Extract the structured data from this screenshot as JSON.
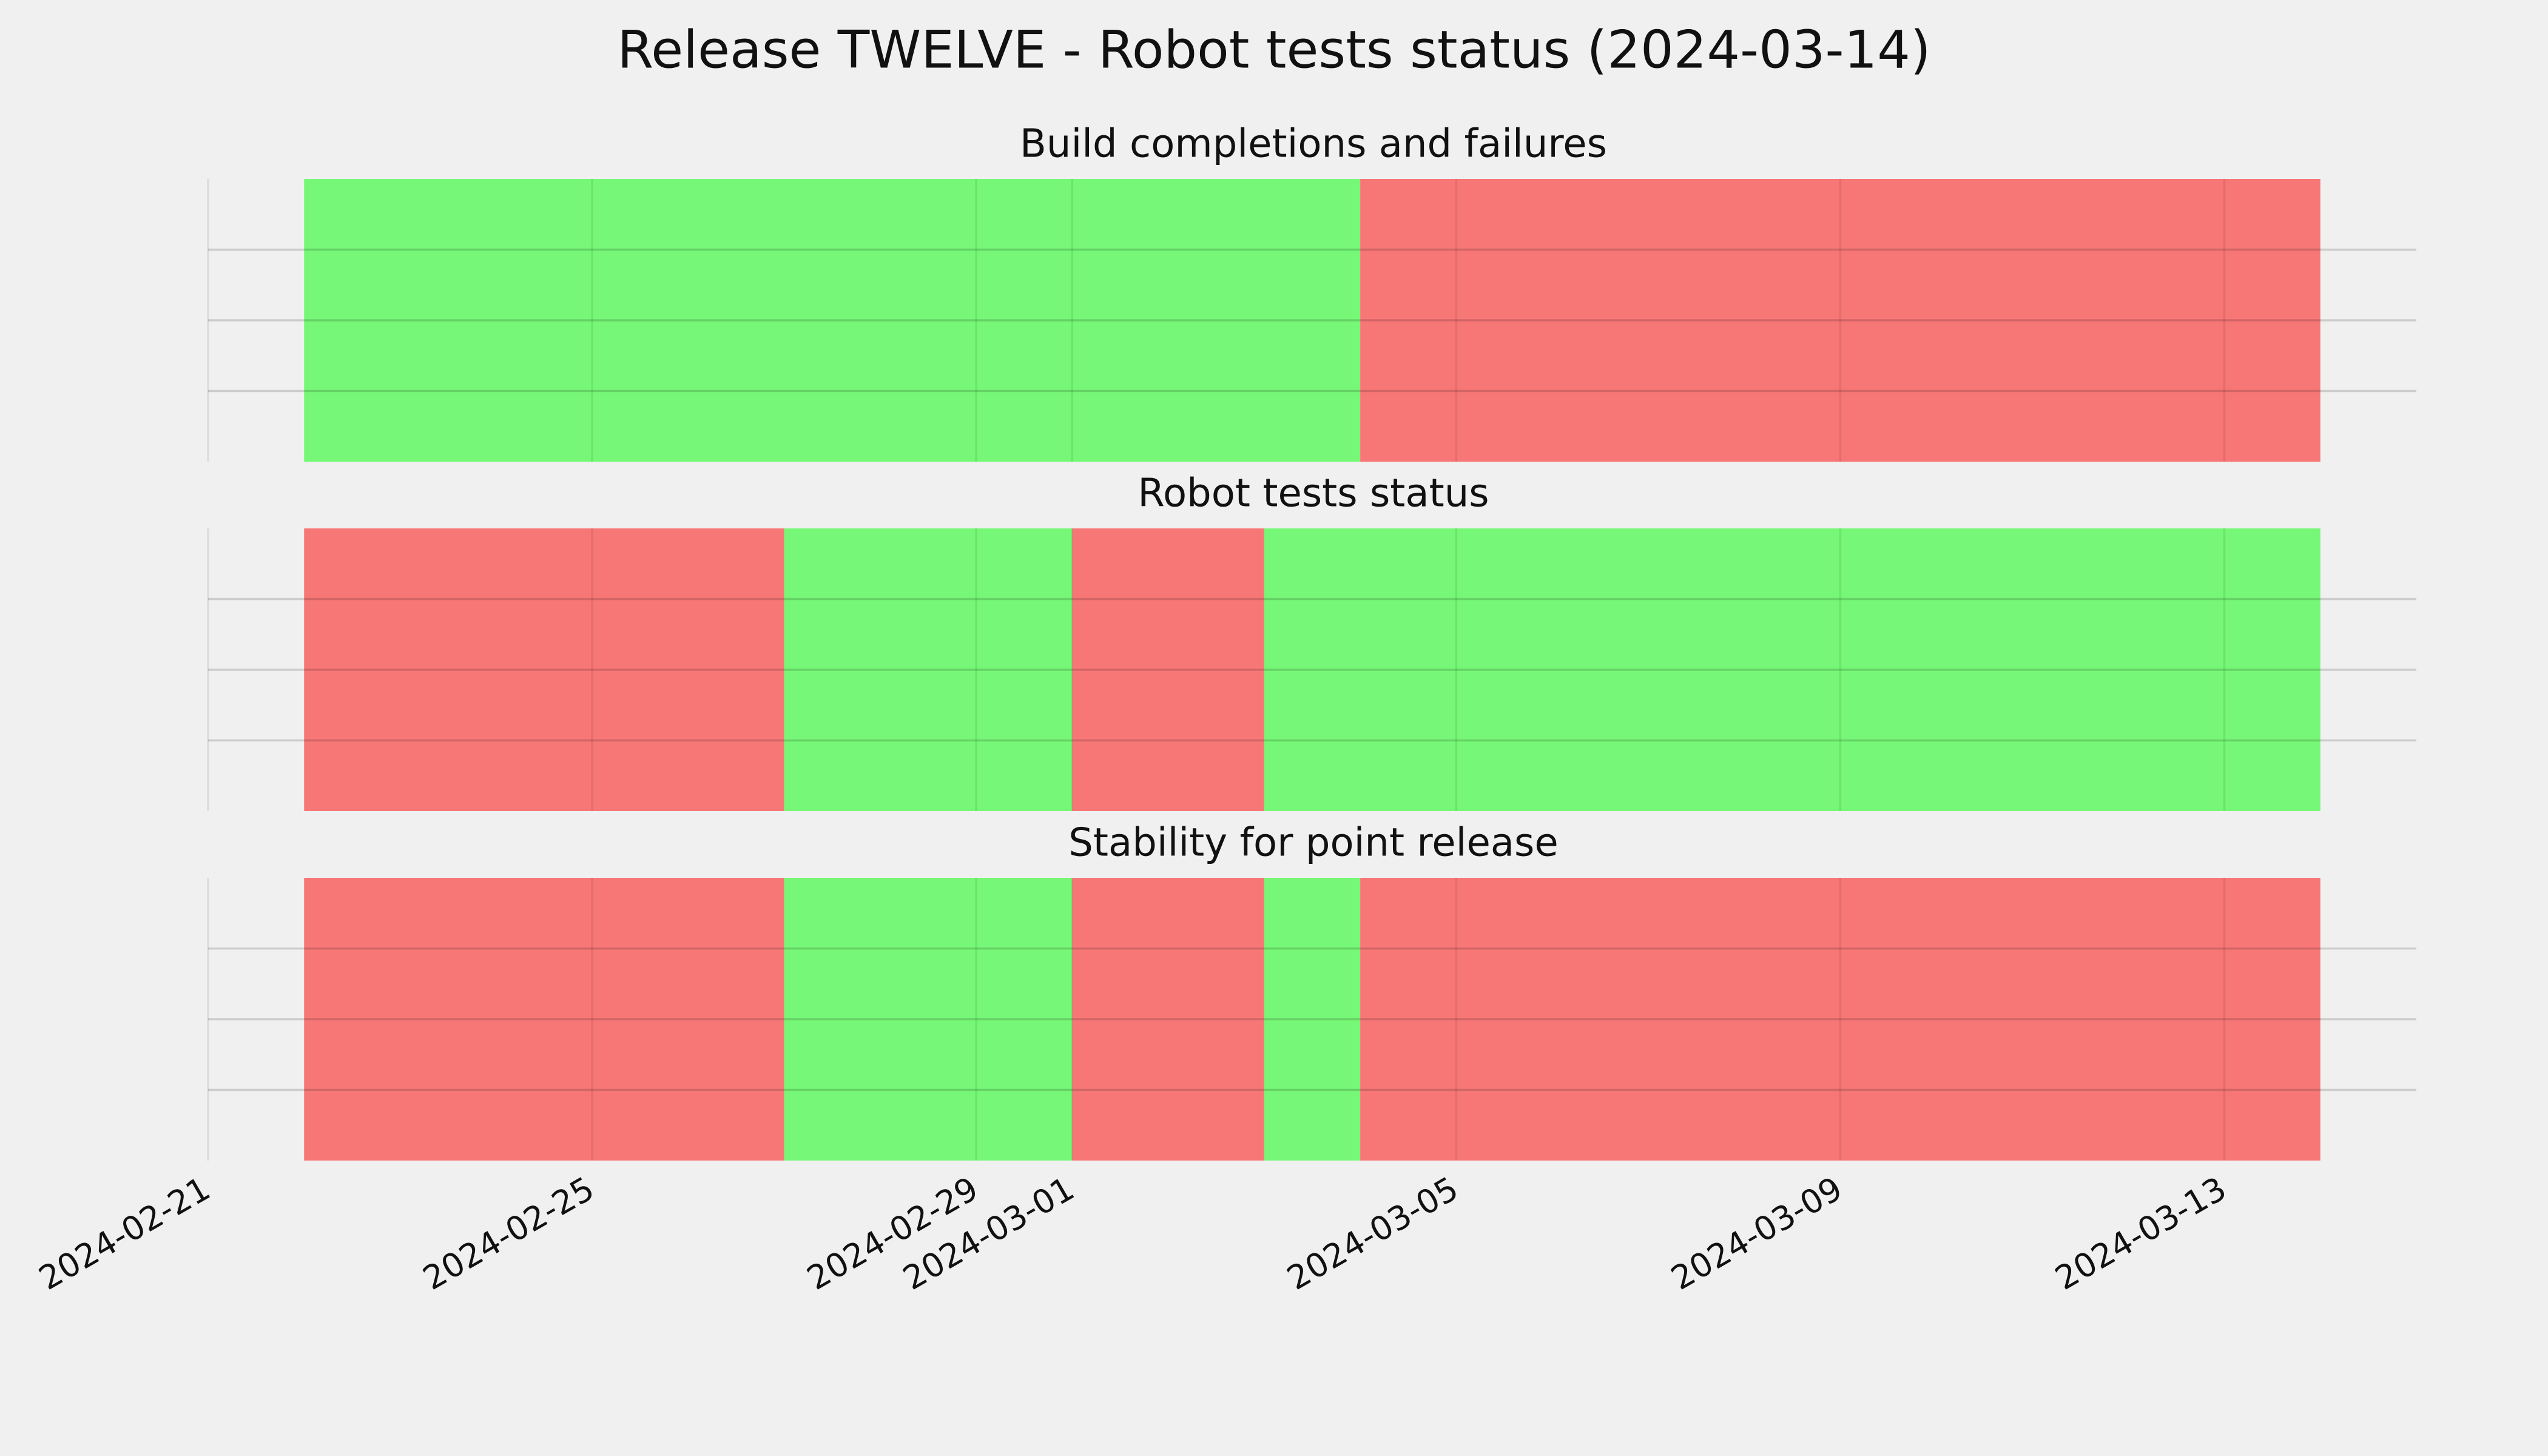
{
  "chart_data": {
    "type": "timeline",
    "title": "Release TWELVE - Robot tests status (2024-03-14)",
    "xlim": [
      "2024-02-21",
      "2024-03-15"
    ],
    "xticks": [
      "2024-02-21",
      "2024-02-25",
      "2024-02-29",
      "2024-03-01",
      "2024-03-05",
      "2024-03-09",
      "2024-03-13"
    ],
    "ylim": [
      0,
      1
    ],
    "yticks": [
      0.25,
      0.5,
      0.75
    ],
    "grid": true,
    "panels": [
      {
        "title": "Build completions and failures",
        "starts": [
          "2024-02-22",
          "2024-03-04"
        ],
        "ends": [
          "2024-03-04",
          "2024-03-14"
        ],
        "colors": [
          "#77f777",
          "#f77777"
        ]
      },
      {
        "title": "Robot tests status",
        "starts": [
          "2024-02-22",
          "2024-02-27",
          "2024-03-01",
          "2024-03-03"
        ],
        "ends": [
          "2024-02-27",
          "2024-03-01",
          "2024-03-03",
          "2024-03-14"
        ],
        "colors": [
          "#f77777",
          "#77f777",
          "#f77777",
          "#77f777"
        ]
      },
      {
        "title": "Stability for point release",
        "starts": [
          "2024-02-22",
          "2024-02-27",
          "2024-03-01",
          "2024-03-03",
          "2024-03-04"
        ],
        "ends": [
          "2024-02-27",
          "2024-03-01",
          "2024-03-03",
          "2024-03-04",
          "2024-03-14"
        ],
        "colors": [
          "#f77777",
          "#77f777",
          "#f77777",
          "#77f777",
          "#f77777"
        ]
      }
    ]
  }
}
